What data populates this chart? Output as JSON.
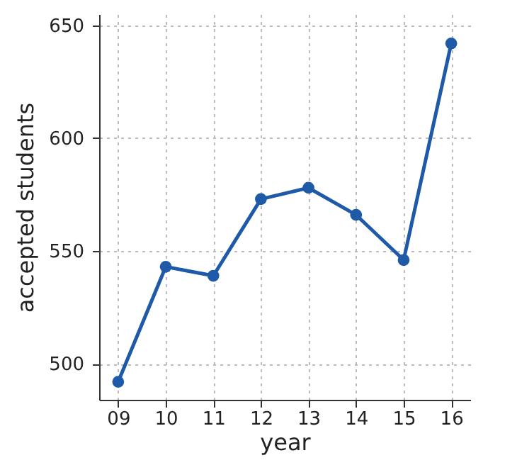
{
  "chart_data": {
    "type": "line",
    "xlabel": "year",
    "ylabel": "accepted students",
    "categories": [
      "09",
      "10",
      "11",
      "12",
      "13",
      "14",
      "15",
      "16"
    ],
    "series": [
      {
        "color": "#1f5aa8",
        "values": [
          492,
          543,
          539,
          573,
          578,
          566,
          546,
          642
        ]
      }
    ],
    "ylim": [
      484,
      655
    ],
    "yticks": [
      500,
      550,
      600,
      650
    ],
    "grid": true,
    "marker": "circle",
    "line_style": "solid"
  }
}
